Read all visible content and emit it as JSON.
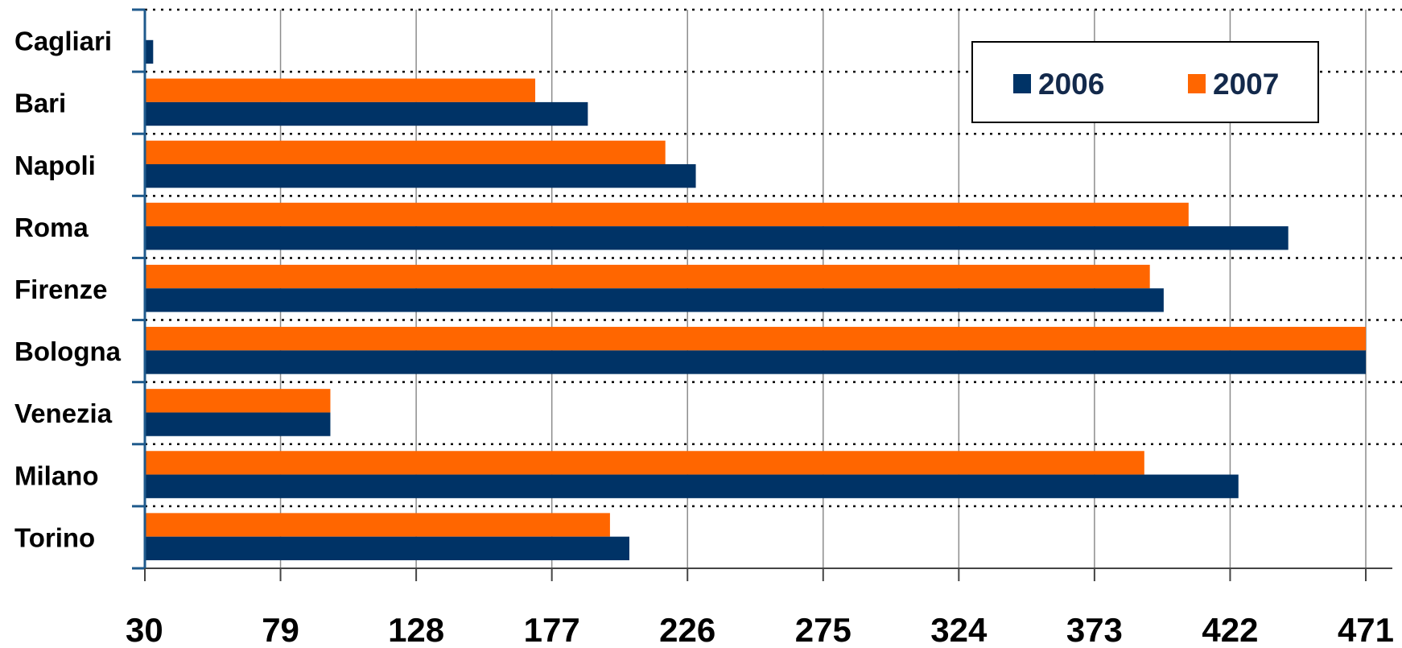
{
  "chart_data": {
    "type": "bar",
    "orientation": "horizontal",
    "categories": [
      "Cagliari",
      "Bari",
      "Napoli",
      "Roma",
      "Firenze",
      "Bologna",
      "Venezia",
      "Milano",
      "Torino"
    ],
    "series": [
      {
        "name": "2006",
        "color": "#003366",
        "values": [
          33,
          190,
          229,
          443,
          398,
          471,
          97,
          425,
          205
        ]
      },
      {
        "name": "2007",
        "color": "#ff6600",
        "values": [
          28,
          171,
          218,
          407,
          393,
          471,
          97,
          391,
          198
        ]
      }
    ],
    "xlim": [
      30,
      471
    ],
    "xticks": [
      "30",
      "79",
      "128",
      "177",
      "226",
      "275",
      "324",
      "373",
      "422",
      "471"
    ],
    "title": "",
    "xlabel": "",
    "ylabel": "",
    "grid": true,
    "legend": "top-right"
  }
}
